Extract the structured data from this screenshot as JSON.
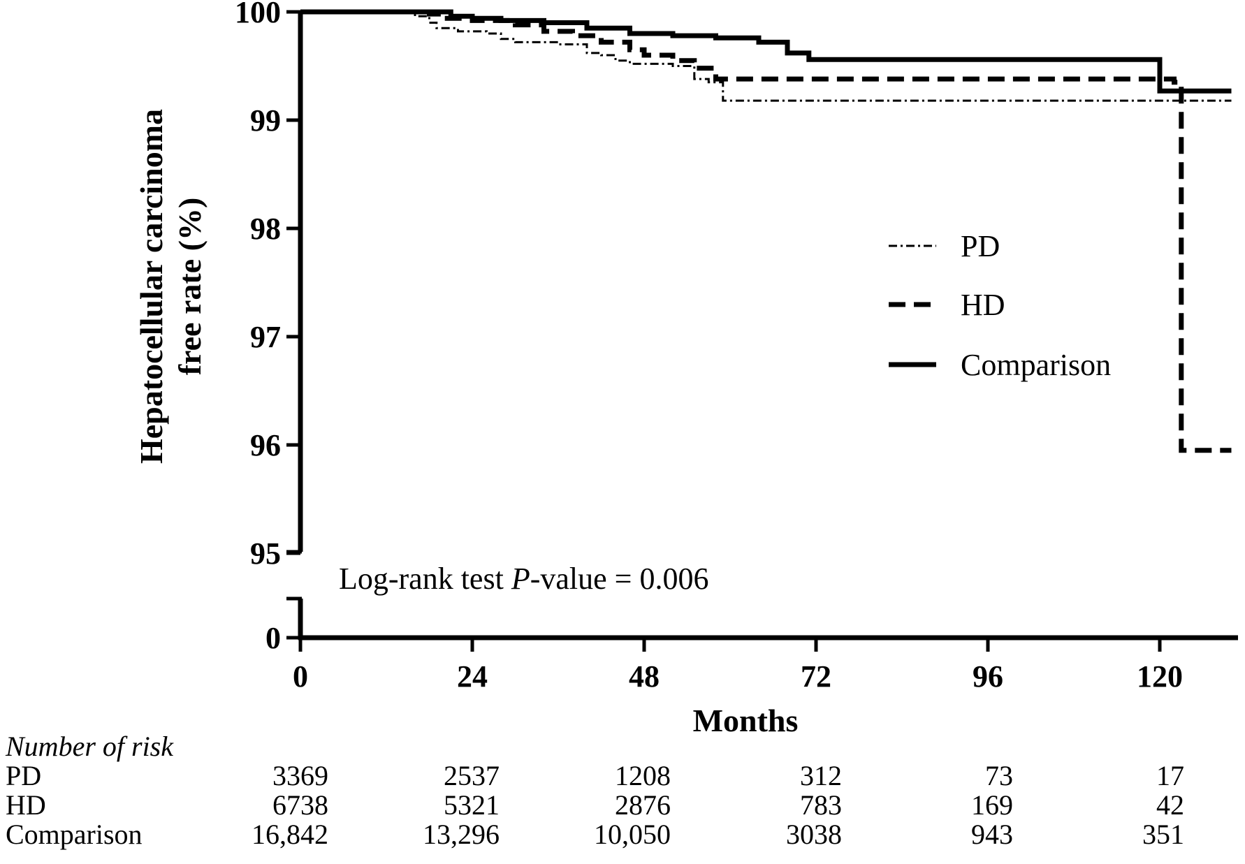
{
  "chart_data": {
    "type": "line",
    "ylabel_line1": "Hepatocellular carcinoma",
    "ylabel_line2": "free rate (%)",
    "xlabel": "Months",
    "x_ticks": [
      "0",
      "24",
      "48",
      "72",
      "96",
      "120"
    ],
    "y_ticks": [
      "100",
      "99",
      "98",
      "97",
      "96",
      "95",
      "0"
    ],
    "xlim": [
      0,
      130
    ],
    "ylim_upper": [
      95,
      100
    ],
    "y_axis_break": true,
    "annotation_prefix": "Log-rank test ",
    "annotation_italic": "P",
    "annotation_suffix": "-value = 0.006",
    "legend_position": "right-middle",
    "series": [
      {
        "name": "PD",
        "style": "dash-dot",
        "points": [
          [
            0,
            100
          ],
          [
            14,
            100
          ],
          [
            16,
            99.96
          ],
          [
            18,
            99.9
          ],
          [
            19,
            99.85
          ],
          [
            22,
            99.82
          ],
          [
            26,
            99.8
          ],
          [
            28,
            99.75
          ],
          [
            30,
            99.72
          ],
          [
            36,
            99.7
          ],
          [
            40,
            99.62
          ],
          [
            42,
            99.6
          ],
          [
            44,
            99.55
          ],
          [
            46,
            99.52
          ],
          [
            52,
            99.5
          ],
          [
            55,
            99.38
          ],
          [
            57,
            99.35
          ],
          [
            59,
            99.18
          ],
          [
            130,
            99.18
          ]
        ]
      },
      {
        "name": "HD",
        "style": "dash",
        "points": [
          [
            0,
            100
          ],
          [
            16,
            100
          ],
          [
            18,
            99.98
          ],
          [
            20,
            99.94
          ],
          [
            24,
            99.92
          ],
          [
            30,
            99.88
          ],
          [
            34,
            99.82
          ],
          [
            38,
            99.78
          ],
          [
            42,
            99.72
          ],
          [
            46,
            99.65
          ],
          [
            48,
            99.6
          ],
          [
            52,
            99.55
          ],
          [
            55,
            99.48
          ],
          [
            58,
            99.38
          ],
          [
            67,
            99.38
          ],
          [
            120,
            99.38
          ],
          [
            122,
            99.35
          ],
          [
            123,
            99.2
          ],
          [
            123,
            95.95
          ],
          [
            130,
            95.95
          ]
        ]
      },
      {
        "name": "Comparison",
        "style": "solid",
        "points": [
          [
            0,
            100
          ],
          [
            19,
            100
          ],
          [
            21,
            99.96
          ],
          [
            24,
            99.94
          ],
          [
            28,
            99.92
          ],
          [
            34,
            99.9
          ],
          [
            40,
            99.85
          ],
          [
            46,
            99.8
          ],
          [
            52,
            99.78
          ],
          [
            58,
            99.76
          ],
          [
            64,
            99.72
          ],
          [
            68,
            99.62
          ],
          [
            71,
            99.56
          ],
          [
            120,
            99.56
          ],
          [
            120,
            99.27
          ],
          [
            130,
            99.27
          ]
        ]
      }
    ],
    "risk_table": {
      "title": "Number of risk",
      "rows": [
        {
          "label": "PD",
          "values": [
            "3369",
            "2537",
            "1208",
            "312",
            "73",
            "17"
          ]
        },
        {
          "label": "HD",
          "values": [
            "6738",
            "5321",
            "2876",
            "783",
            "169",
            "42"
          ]
        },
        {
          "label": "Comparison",
          "values": [
            "16,842",
            "13,296",
            "10,050",
            "3038",
            "943",
            "351"
          ]
        }
      ]
    }
  }
}
